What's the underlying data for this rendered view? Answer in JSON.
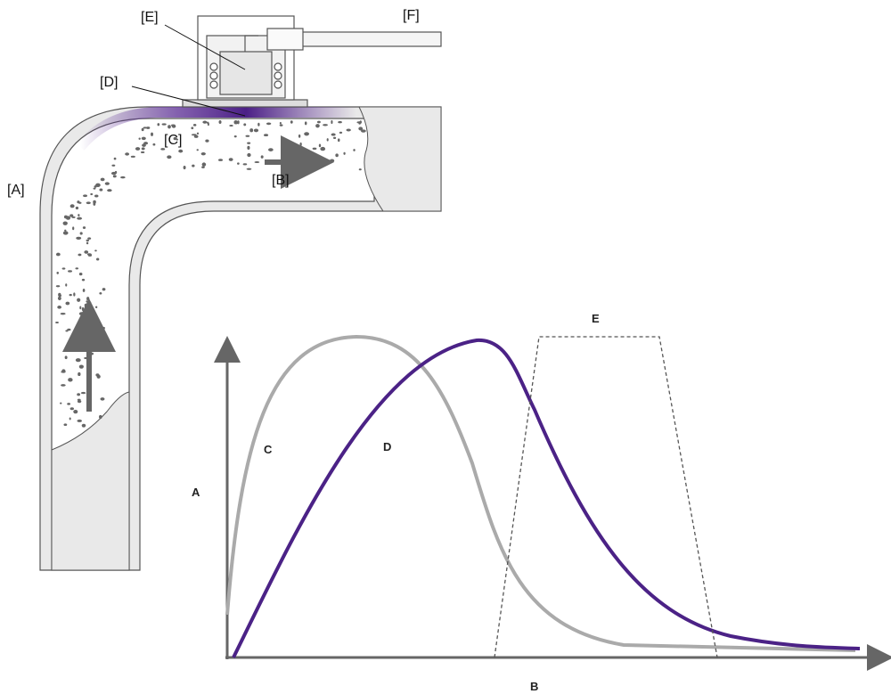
{
  "diagram": {
    "callouts": [
      "[E]",
      "[F]",
      "[D]",
      "[C]",
      "[A]",
      "[B]"
    ]
  },
  "chart": {
    "y_label": "A",
    "x_label": "B",
    "curve_labels": [
      "C",
      "D",
      "E"
    ]
  }
}
